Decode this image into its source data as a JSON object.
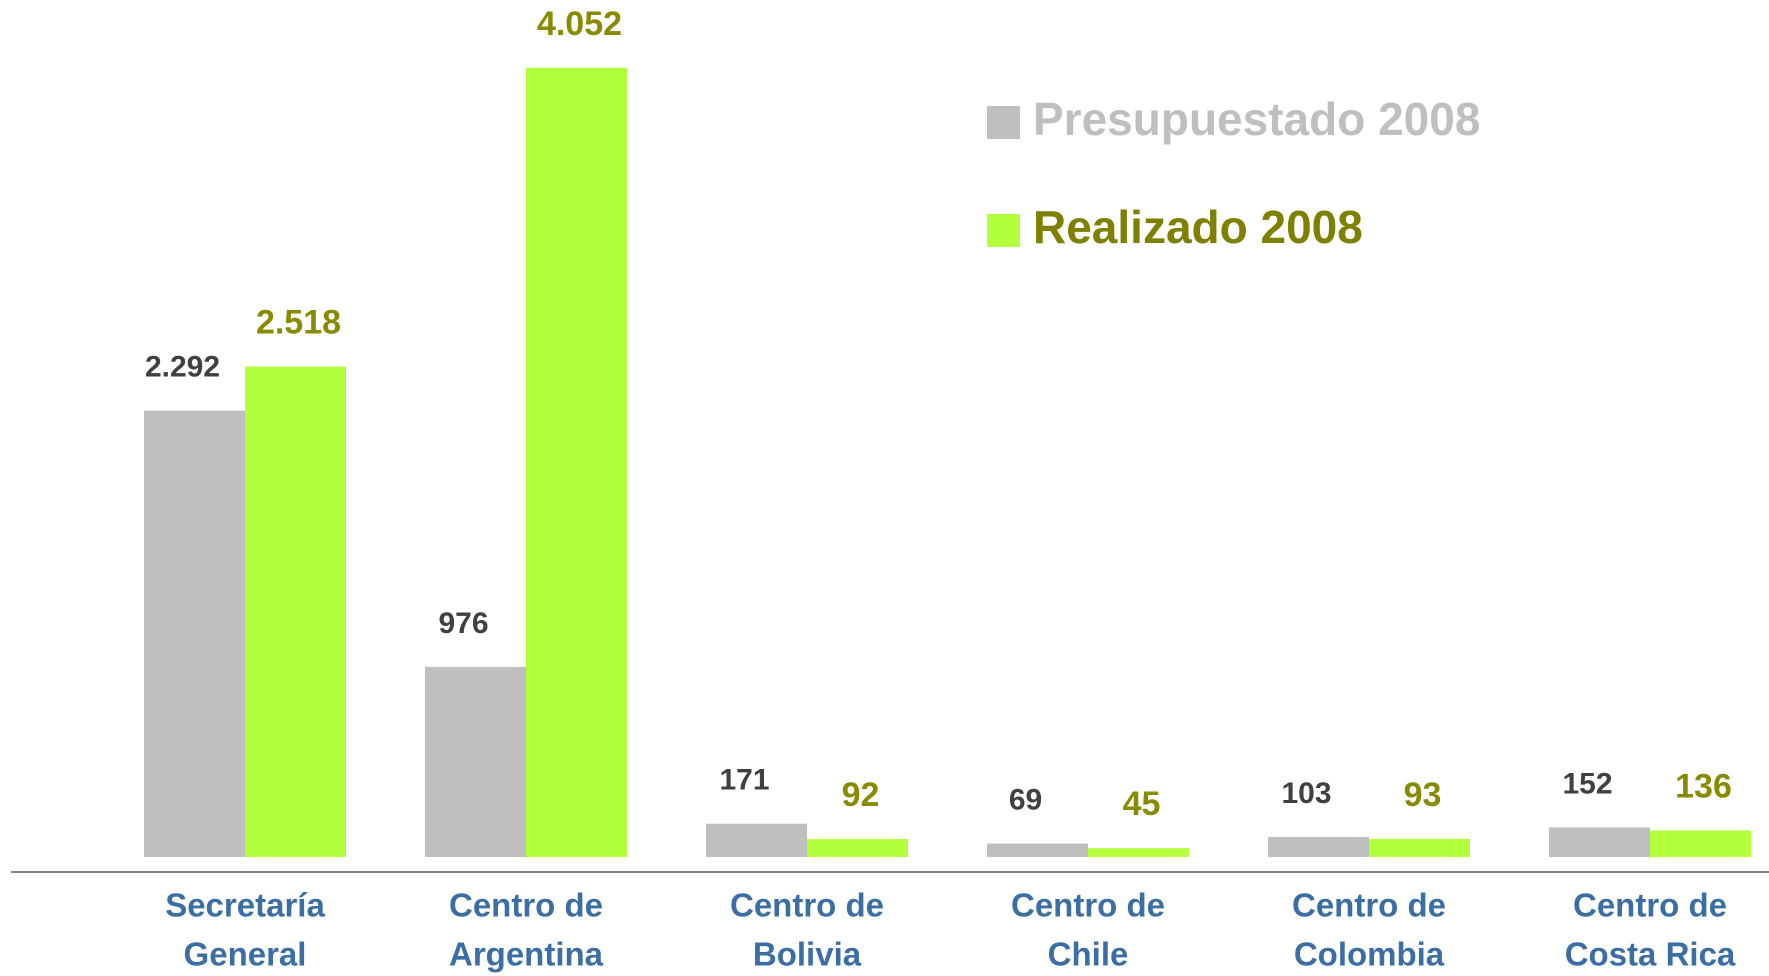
{
  "chart_data": {
    "type": "bar",
    "categories": [
      [
        "Secretaría",
        "General"
      ],
      [
        "Centro de",
        "Argentina"
      ],
      [
        "Centro de",
        "Bolivia"
      ],
      [
        "Centro de",
        "Chile"
      ],
      [
        "Centro de",
        "Colombia"
      ],
      [
        "Centro de",
        "Costa Rica"
      ]
    ],
    "series": [
      {
        "name": "Presupuestado 2008",
        "color": "#bfbfbf",
        "label_color": "#404040",
        "legend_color": "#bfbfbf",
        "values": [
          2292,
          976,
          171,
          69,
          103,
          152
        ],
        "value_labels": [
          "2.292",
          "976",
          "171",
          "69",
          "103",
          "152"
        ]
      },
      {
        "name": "Realizado 2008",
        "color": "#b2ff3c",
        "label_color": "#8a8a00",
        "legend_color": "#7f7f00",
        "values": [
          2518,
          4052,
          92,
          45,
          93,
          136
        ],
        "value_labels": [
          "2.518",
          "4.052",
          "92",
          "45",
          "93",
          "136"
        ]
      }
    ],
    "category_color": "#3a6ea5",
    "ylim": [
      0,
      4400
    ]
  }
}
